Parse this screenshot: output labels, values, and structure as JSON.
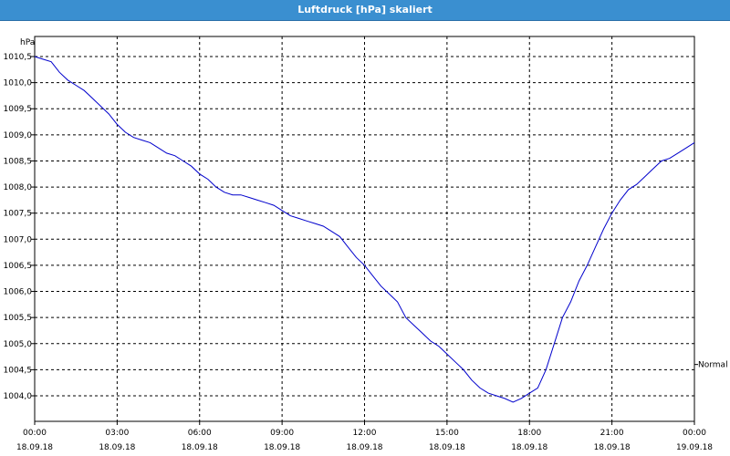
{
  "window": {
    "title": "Luftdruck [hPa] skaliert"
  },
  "chart_data": {
    "type": "line",
    "title": "Luftdruck [hPa] skaliert",
    "ylabel": "hPa",
    "xlabel": "",
    "xlim": [
      0,
      24
    ],
    "ylim": [
      1003.5,
      1010.6
    ],
    "grid": true,
    "line_color": "#0000cc",
    "y_ticks": [
      {
        "value": 1004.0,
        "label": "1004,0"
      },
      {
        "value": 1004.5,
        "label": "1004,5"
      },
      {
        "value": 1005.0,
        "label": "1005,0"
      },
      {
        "value": 1005.5,
        "label": "1005,5"
      },
      {
        "value": 1006.0,
        "label": "1006,0"
      },
      {
        "value": 1006.5,
        "label": "1006,5"
      },
      {
        "value": 1007.0,
        "label": "1007,0"
      },
      {
        "value": 1007.5,
        "label": "1007,5"
      },
      {
        "value": 1008.0,
        "label": "1008,0"
      },
      {
        "value": 1008.5,
        "label": "1008,5"
      },
      {
        "value": 1009.0,
        "label": "1009,0"
      },
      {
        "value": 1009.5,
        "label": "1009,5"
      },
      {
        "value": 1010.0,
        "label": "1010,0"
      },
      {
        "value": 1010.5,
        "label": "1010,5"
      }
    ],
    "x_ticks": [
      {
        "value": 0,
        "time": "00:00",
        "date": "18.09.18"
      },
      {
        "value": 3,
        "time": "03:00",
        "date": "18.09.18"
      },
      {
        "value": 6,
        "time": "06:00",
        "date": "18.09.18"
      },
      {
        "value": 9,
        "time": "09:00",
        "date": "18.09.18"
      },
      {
        "value": 12,
        "time": "12:00",
        "date": "18.09.18"
      },
      {
        "value": 15,
        "time": "15:00",
        "date": "18.09.18"
      },
      {
        "value": 18,
        "time": "18:00",
        "date": "18.09.18"
      },
      {
        "value": 21,
        "time": "21:00",
        "date": "18.09.18"
      },
      {
        "value": 24,
        "time": "00:00",
        "date": "19.09.18"
      }
    ],
    "reference_line": {
      "label": "Normal",
      "value": 1004.6
    },
    "series": [
      {
        "x": [
          0.0,
          0.3,
          0.6,
          0.9,
          1.2,
          1.5,
          1.8,
          2.1,
          2.4,
          2.7,
          3.0,
          3.3,
          3.6,
          3.9,
          4.2,
          4.5,
          4.8,
          5.1,
          5.4,
          5.7,
          6.0,
          6.3,
          6.6,
          6.9,
          7.2,
          7.5,
          7.8,
          8.1,
          8.4,
          8.7,
          9.0,
          9.3,
          9.6,
          9.9,
          10.2,
          10.5,
          10.8,
          11.1,
          11.4,
          11.7,
          12.0,
          12.3,
          12.6,
          12.9,
          13.2,
          13.5,
          13.8,
          14.1,
          14.4,
          14.7,
          15.0,
          15.3,
          15.6,
          15.9,
          16.2,
          16.5,
          16.8,
          17.1,
          17.4,
          17.7,
          18.0,
          18.3,
          18.6,
          18.9,
          19.2,
          19.5,
          19.8,
          20.1,
          20.4,
          20.7,
          21.0,
          21.3,
          21.6,
          21.9,
          22.2,
          22.5,
          22.8,
          23.1,
          23.4,
          23.7,
          24.0
        ],
        "values": [
          1010.5,
          1010.45,
          1010.4,
          1010.2,
          1010.05,
          1009.95,
          1009.85,
          1009.7,
          1009.55,
          1009.4,
          1009.2,
          1009.05,
          1008.95,
          1008.9,
          1008.85,
          1008.75,
          1008.65,
          1008.6,
          1008.5,
          1008.4,
          1008.25,
          1008.15,
          1008.0,
          1007.9,
          1007.85,
          1007.85,
          1007.8,
          1007.75,
          1007.7,
          1007.65,
          1007.55,
          1007.45,
          1007.4,
          1007.35,
          1007.3,
          1007.25,
          1007.15,
          1007.05,
          1006.85,
          1006.65,
          1006.5,
          1006.3,
          1006.1,
          1005.95,
          1005.8,
          1005.5,
          1005.35,
          1005.2,
          1005.05,
          1004.95,
          1004.8,
          1004.65,
          1004.5,
          1004.3,
          1004.15,
          1004.05,
          1004.0,
          1003.95,
          1003.88,
          1003.95,
          1004.05,
          1004.15,
          1004.5,
          1005.0,
          1005.5,
          1005.8,
          1006.2,
          1006.5,
          1006.85,
          1007.2,
          1007.5,
          1007.75,
          1007.95,
          1008.05,
          1008.2,
          1008.35,
          1008.5,
          1008.55,
          1008.65,
          1008.75,
          1008.85
        ]
      }
    ]
  }
}
